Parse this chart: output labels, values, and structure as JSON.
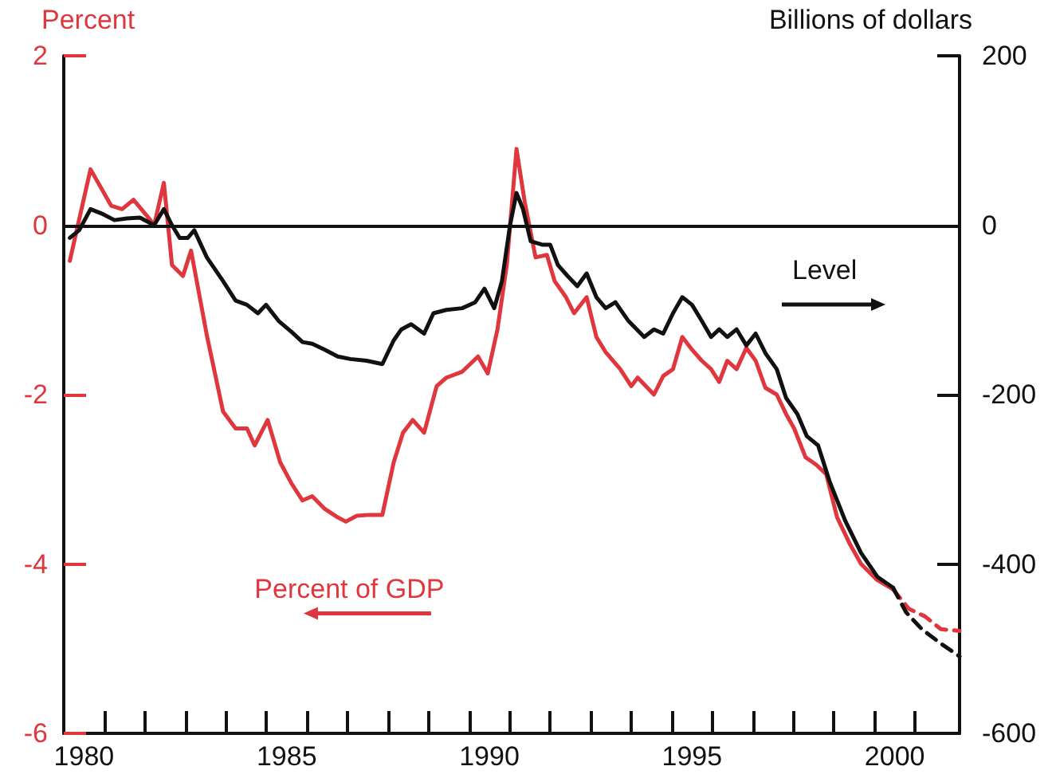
{
  "chart_data": {
    "type": "line",
    "ylabel": "Percent",
    "y2label": "Billions of dollars",
    "marker": "none",
    "grid": false,
    "legend": false,
    "xlim": [
      1979.5,
      2001.6
    ],
    "xticks": [
      1980,
      1985,
      1990,
      1995,
      2000,
      {
        "value": 1980.5,
        "label": null
      },
      {
        "value": 1981.5,
        "label": null
      },
      {
        "value": 1982.5,
        "label": null
      },
      {
        "value": 1983.5,
        "label": null
      },
      {
        "value": 1984.5,
        "label": null
      },
      {
        "value": 1985.5,
        "label": null
      },
      {
        "value": 1986.5,
        "label": null
      },
      {
        "value": 1987.5,
        "label": null
      },
      {
        "value": 1988.5,
        "label": null
      },
      {
        "value": 1989.5,
        "label": null
      },
      {
        "value": 1990.5,
        "label": null
      },
      {
        "value": 1991.5,
        "label": null
      },
      {
        "value": 1992.5,
        "label": null
      },
      {
        "value": 1993.5,
        "label": null
      },
      {
        "value": 1994.5,
        "label": null
      },
      {
        "value": 1995.5,
        "label": null
      },
      {
        "value": 1996.5,
        "label": null
      },
      {
        "value": 1997.5,
        "label": null
      },
      {
        "value": 1998.5,
        "label": null
      },
      {
        "value": 1999.5,
        "label": null
      },
      {
        "value": 2000.5,
        "label": null
      }
    ],
    "ylim": [
      -6,
      2
    ],
    "yticks": [
      -6,
      -4,
      -2,
      0,
      2
    ],
    "y2lim": [
      -600,
      200
    ],
    "y2ticks": [
      -600,
      -400,
      -200,
      0,
      200
    ],
    "ref_lines": [
      {
        "axis": "y",
        "value": 0,
        "color": "#111111",
        "line_style": "solid"
      }
    ],
    "series": [
      {
        "name": "Percent of GDP",
        "color": "#e0363d",
        "line_style": "solid",
        "x": [
          1979.65,
          1980.16,
          1980.67,
          1980.94,
          1981.22,
          1981.57,
          1981.73,
          1981.97,
          1982.17,
          1982.44,
          1982.64,
          1983.03,
          1983.43,
          1983.74,
          1984.02,
          1984.21,
          1984.53,
          1984.84,
          1985.12,
          1985.39,
          1985.63,
          1985.94,
          1986.26,
          1986.46,
          1986.73,
          1987.05,
          1987.36,
          1987.64,
          1987.87,
          1988.11,
          1988.39,
          1988.7,
          1988.94,
          1989.33,
          1989.72,
          1989.96,
          1990.2,
          1990.43,
          1990.67,
          1990.87,
          1991.14,
          1991.42,
          1991.61,
          1991.89,
          1992.09,
          1992.4,
          1992.64,
          1992.87,
          1993.23,
          1993.5,
          1993.66,
          1994.06,
          1994.29,
          1994.53,
          1994.76,
          1995.0,
          1995.24,
          1995.47,
          1995.67,
          1995.87,
          1996.1,
          1996.34,
          1996.57,
          1996.81,
          1997.09,
          1997.32,
          1997.52,
          1997.8,
          1998.07,
          1998.31,
          1998.58,
          1998.9,
          1999.17,
          1999.57,
          1999.96
        ],
        "values": [
          -0.42,
          0.66,
          0.23,
          0.19,
          0.3,
          0.1,
          0.0,
          0.5,
          -0.47,
          -0.6,
          -0.3,
          -1.3,
          -2.2,
          -2.4,
          -2.4,
          -2.6,
          -2.3,
          -2.8,
          -3.05,
          -3.25,
          -3.2,
          -3.35,
          -3.45,
          -3.5,
          -3.43,
          -3.42,
          -3.42,
          -2.8,
          -2.45,
          -2.3,
          -2.45,
          -1.9,
          -1.8,
          -1.73,
          -1.55,
          -1.75,
          -1.23,
          -0.47,
          0.9,
          0.28,
          -0.38,
          -0.35,
          -0.66,
          -0.85,
          -1.04,
          -0.85,
          -1.32,
          -1.5,
          -1.7,
          -1.9,
          -1.8,
          -2.0,
          -1.78,
          -1.7,
          -1.32,
          -1.47,
          -1.6,
          -1.7,
          -1.85,
          -1.6,
          -1.7,
          -1.45,
          -1.6,
          -1.92,
          -2.0,
          -2.23,
          -2.4,
          -2.74,
          -2.83,
          -2.94,
          -3.45,
          -3.77,
          -4.0,
          -4.19,
          -4.3
        ]
      },
      {
        "name": "Level",
        "color": "#111111",
        "axis": "y2",
        "line_style": "solid",
        "x": [
          1979.65,
          1979.88,
          1980.16,
          1980.47,
          1980.75,
          1981.06,
          1981.38,
          1981.73,
          1981.97,
          1982.17,
          1982.36,
          1982.56,
          1982.72,
          1983.03,
          1983.43,
          1983.74,
          1984.02,
          1984.29,
          1984.49,
          1984.8,
          1985.12,
          1985.39,
          1985.63,
          1985.94,
          1986.26,
          1986.57,
          1986.97,
          1987.36,
          1987.64,
          1987.83,
          1988.07,
          1988.39,
          1988.62,
          1988.94,
          1989.33,
          1989.65,
          1989.88,
          1990.12,
          1990.31,
          1990.51,
          1990.67,
          1990.83,
          1991.02,
          1991.3,
          1991.5,
          1991.69,
          1991.93,
          1992.17,
          1992.4,
          1992.64,
          1992.87,
          1993.11,
          1993.43,
          1993.82,
          1994.06,
          1994.29,
          1994.53,
          1994.76,
          1995.0,
          1995.24,
          1995.47,
          1995.67,
          1995.87,
          1996.1,
          1996.34,
          1996.57,
          1996.81,
          1997.09,
          1997.32,
          1997.6,
          1997.83,
          1998.11,
          1998.39,
          1998.78,
          1999.17,
          1999.57,
          1999.96
        ],
        "values": [
          -15,
          -6,
          19,
          13,
          6,
          8,
          9,
          0,
          19,
          0,
          -15,
          -15,
          -6,
          -38,
          -66,
          -89,
          -94,
          -104,
          -94,
          -113,
          -126,
          -138,
          -140,
          -147,
          -155,
          -158,
          -160,
          -164,
          -136,
          -123,
          -117,
          -128,
          -104,
          -100,
          -98,
          -91,
          -75,
          -98,
          -66,
          0,
          38,
          19,
          -19,
          -23,
          -23,
          -47,
          -60,
          -72,
          -57,
          -85,
          -98,
          -91,
          -113,
          -132,
          -123,
          -128,
          -104,
          -85,
          -94,
          -113,
          -132,
          -123,
          -132,
          -123,
          -142,
          -128,
          -151,
          -170,
          -204,
          -223,
          -249,
          -260,
          -302,
          -349,
          -387,
          -415,
          -428
        ]
      },
      {
        "color": "#e0363d",
        "line_style": "dashed",
        "x": [
          1999.96,
          2000.35,
          2000.75,
          2001.14,
          2001.6
        ],
        "values": [
          -4.3,
          -4.53,
          -4.62,
          -4.77,
          -4.79
        ]
      },
      {
        "color": "#111111",
        "axis": "y2",
        "line_style": "dashed",
        "x": [
          1999.96,
          2000.28,
          2000.67,
          2001.14,
          2001.6
        ],
        "values": [
          -428,
          -457,
          -477,
          -494,
          -509
        ]
      }
    ]
  }
}
